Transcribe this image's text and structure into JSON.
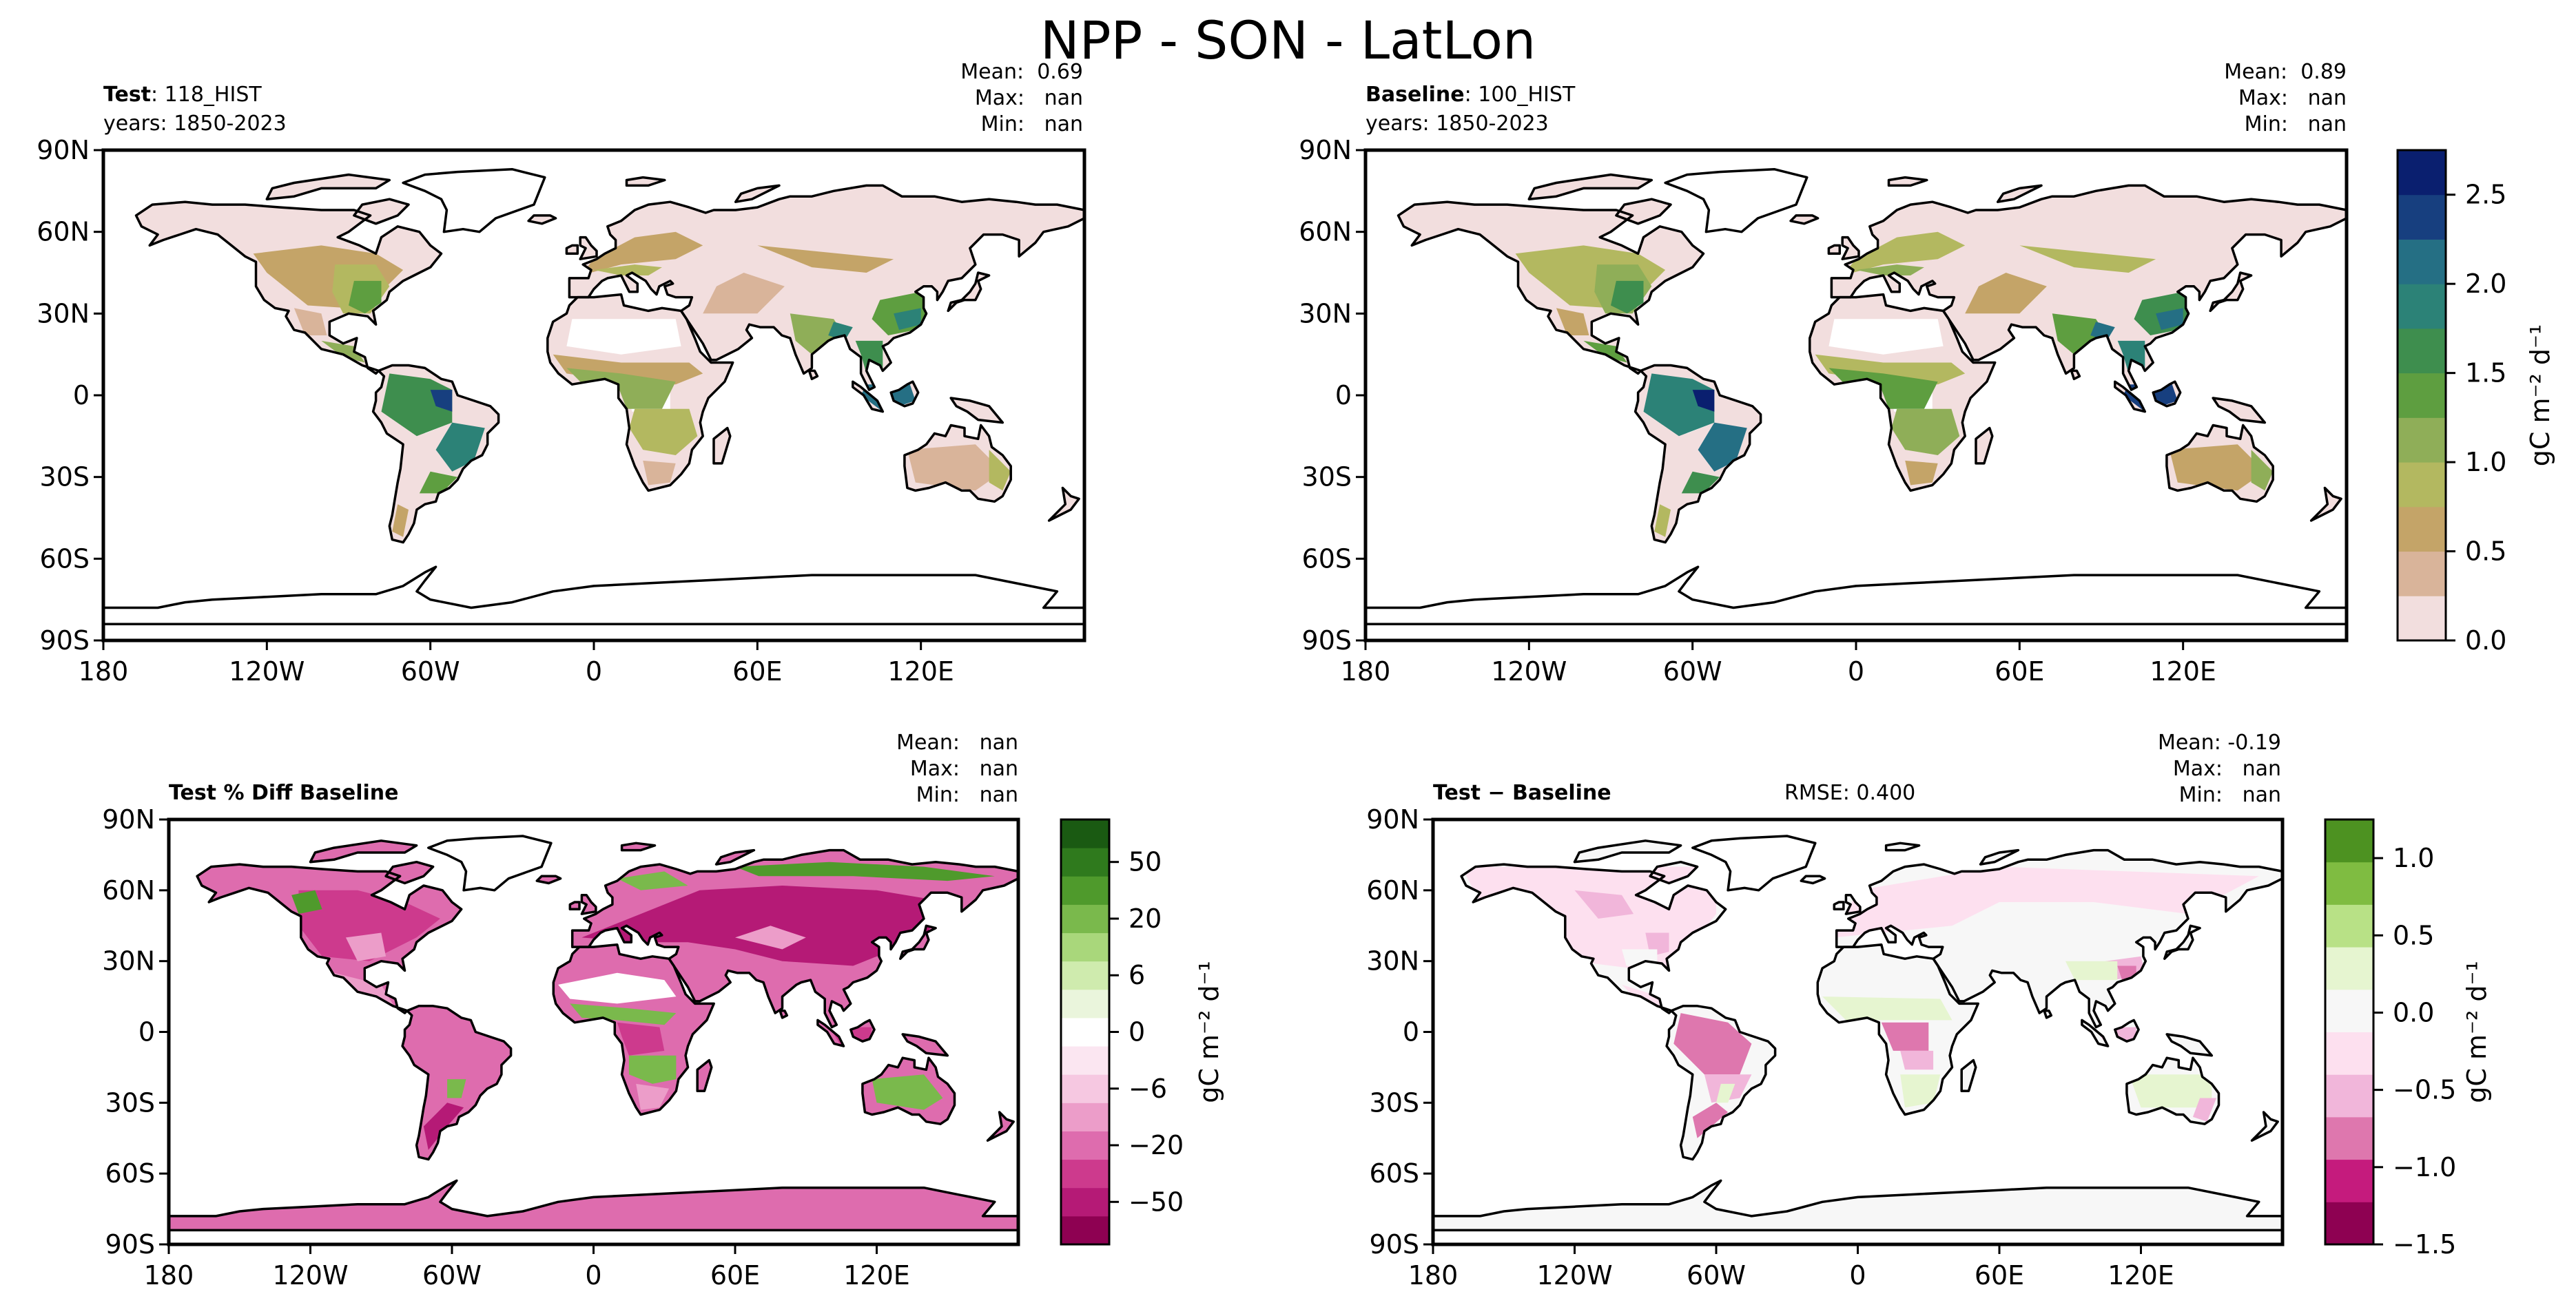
{
  "figure_title": "NPP - SON - LatLon",
  "colors": {
    "land_abs": [
      "#f2dede",
      "#d9b49a",
      "#c4a468",
      "#b3b860",
      "#8fae58",
      "#5e9e40",
      "#3e8e4e",
      "#2c8277",
      "#256f84",
      "#173f7f",
      "#0a1f6f"
    ],
    "land_pct": [
      "#8e0152",
      "#b51a76",
      "#cd3a8d",
      "#de6cae",
      "#ec9dc9",
      "#f6c8e1",
      "#fbe6f1",
      "#ffffff",
      "#eaf5dc",
      "#cfebae",
      "#a9d77b",
      "#7ab94c",
      "#4f9a2c",
      "#2f7a1d",
      "#1a5a12"
    ],
    "land_diff": [
      "#8e0152",
      "#c51b7d",
      "#de77ae",
      "#f1b6da",
      "#fde0ef",
      "#f7f7f7",
      "#e6f5d0",
      "#b8e186",
      "#7fbc41",
      "#4d9221"
    ],
    "coast": "#000000"
  },
  "panels": [
    {
      "id": "test",
      "title_bold": "Test",
      "title_rest": ": 118_HIST",
      "years": "years: 1850-2023",
      "mean_label": "Mean:",
      "mean": "0.69",
      "max_label": "Max:",
      "max": "nan",
      "min_label": "Min:",
      "min": "nan"
    },
    {
      "id": "baseline",
      "title_bold": "Baseline",
      "title_rest": ": 100_HIST",
      "years": "years: 1850-2023",
      "mean_label": "Mean:",
      "mean": "0.89",
      "max_label": "Max:",
      "max": "nan",
      "min_label": "Min:",
      "min": "nan"
    },
    {
      "id": "pctdiff",
      "title_bold": "Test % Diff Baseline",
      "title_rest": "",
      "mean_label": "Mean:",
      "mean": "nan",
      "max_label": "Max:",
      "max": "nan",
      "min_label": "Min:",
      "min": "nan"
    },
    {
      "id": "diff",
      "title_bold": "Test − Baseline",
      "title_rest": "",
      "rmse": "RMSE: 0.400",
      "mean_label": "Mean:",
      "mean": "-0.19",
      "max_label": "Max:",
      "max": "nan",
      "min_label": "Min:",
      "min": "nan"
    }
  ],
  "chart_data": [
    {
      "type": "heatmap",
      "name": "Test",
      "map_projection": "PlateCarree",
      "x_ticks": [
        "180",
        "120W",
        "60W",
        "0",
        "60E",
        "120E"
      ],
      "y_ticks": [
        "90N",
        "60N",
        "30N",
        "0",
        "30S",
        "60S",
        "90S"
      ],
      "xlim": [
        -180,
        180
      ],
      "ylim": [
        -90,
        90
      ],
      "stats": {
        "mean": 0.69,
        "max": "nan",
        "min": "nan"
      }
    },
    {
      "type": "heatmap",
      "name": "Baseline",
      "map_projection": "PlateCarree",
      "x_ticks": [
        "180",
        "120W",
        "60W",
        "0",
        "60E",
        "120E"
      ],
      "y_ticks": [
        "90N",
        "60N",
        "30N",
        "0",
        "30S",
        "60S",
        "90S"
      ],
      "xlim": [
        -180,
        180
      ],
      "ylim": [
        -90,
        90
      ],
      "stats": {
        "mean": 0.89,
        "max": "nan",
        "min": "nan"
      },
      "colorbar": {
        "label": "gC m⁻² d⁻¹",
        "levels": [
          0.0,
          0.25,
          0.5,
          0.75,
          1.0,
          1.25,
          1.5,
          1.75,
          2.0,
          2.25,
          2.5,
          2.75
        ],
        "tick_values": [
          0.0,
          0.5,
          1.0,
          1.5,
          2.0,
          2.5
        ],
        "tick_labels": [
          "0.0",
          "0.5",
          "1.0",
          "1.5",
          "2.0",
          "2.5"
        ]
      }
    },
    {
      "type": "heatmap",
      "name": "Test % Diff Baseline",
      "map_projection": "PlateCarree",
      "x_ticks": [
        "180",
        "120W",
        "60W",
        "0",
        "60E",
        "120E"
      ],
      "y_ticks": [
        "90N",
        "60N",
        "30N",
        "0",
        "30S",
        "60S",
        "90S"
      ],
      "xlim": [
        -180,
        180
      ],
      "ylim": [
        -90,
        90
      ],
      "stats": {
        "mean": "nan",
        "max": "nan",
        "min": "nan"
      },
      "colorbar": {
        "label": "gC m⁻² d⁻¹",
        "tick_labels": [
          "50",
          "20",
          "6",
          "0",
          "−6",
          "−20",
          "−50"
        ]
      }
    },
    {
      "type": "heatmap",
      "name": "Test − Baseline",
      "map_projection": "PlateCarree",
      "x_ticks": [
        "180",
        "120W",
        "60W",
        "0",
        "60E",
        "120E"
      ],
      "y_ticks": [
        "90N",
        "60N",
        "30N",
        "0",
        "30S",
        "60S",
        "90S"
      ],
      "xlim": [
        -180,
        180
      ],
      "ylim": [
        -90,
        90
      ],
      "stats": {
        "mean": -0.19,
        "max": "nan",
        "min": "nan",
        "rmse": 0.4
      },
      "colorbar": {
        "label": "gC m⁻² d⁻¹",
        "levels": [
          -1.5,
          -1.25,
          -1.0,
          -0.75,
          -0.5,
          -0.25,
          0.0,
          0.25,
          0.5,
          0.75,
          1.0,
          1.25
        ],
        "tick_values": [
          -1.5,
          -1.0,
          -0.5,
          0.0,
          0.5,
          1.0
        ],
        "tick_labels": [
          "−1.5",
          "−1.0",
          "−0.5",
          "0.0",
          "0.5",
          "1.0"
        ]
      }
    }
  ]
}
